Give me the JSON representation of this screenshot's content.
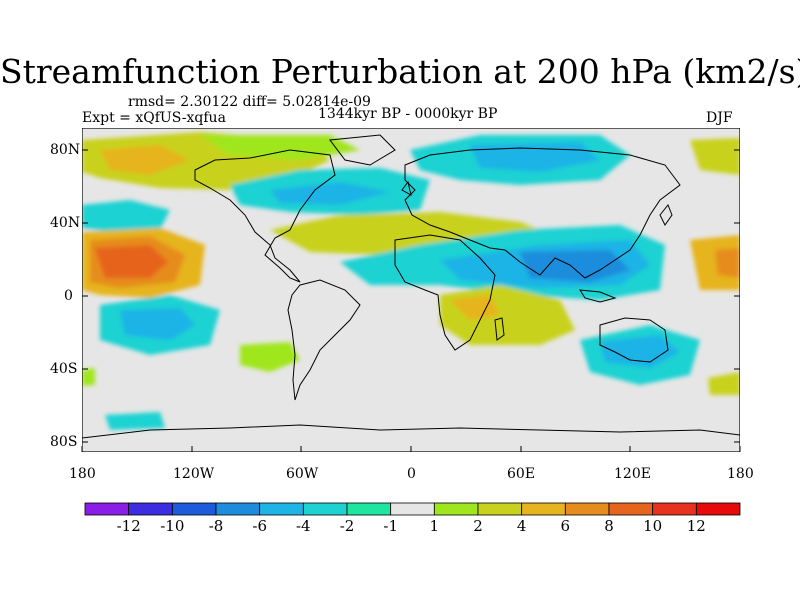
{
  "title": "Streamfunction Perturbation at 200 hPa (km2/s)",
  "stats": "rmsd= 2.30122 diff= 5.02814e-09",
  "experiment": "Expt = xQfUS-xqfua",
  "period": "1344kyr BP - 0000kyr BP",
  "season": "DJF",
  "lat_labels": [
    "80N",
    "40N",
    "0",
    "40S",
    "80S"
  ],
  "lon_labels": [
    "180",
    "120W",
    "60W",
    "0",
    "60E",
    "120E",
    "180"
  ],
  "colorbar": {
    "labels": [
      "-12",
      "-10",
      "-8",
      "-6",
      "-4",
      "-2",
      "-1",
      "1",
      "2",
      "4",
      "6",
      "8",
      "10",
      "12"
    ],
    "colors": [
      "#8a1ee6",
      "#3c2ee0",
      "#1e5adc",
      "#1e8cdc",
      "#1eb4e6",
      "#1ed2d2",
      "#1ee6a0",
      "#e6e6e6",
      "#a0e61e",
      "#c8d21e",
      "#e6b41e",
      "#e68c1e",
      "#e6641e",
      "#e6321e",
      "#e60a0a"
    ]
  },
  "colors": {
    "land_outline": "#000000",
    "neutral": "#e6e6e6",
    "background": "#ffffff"
  }
}
